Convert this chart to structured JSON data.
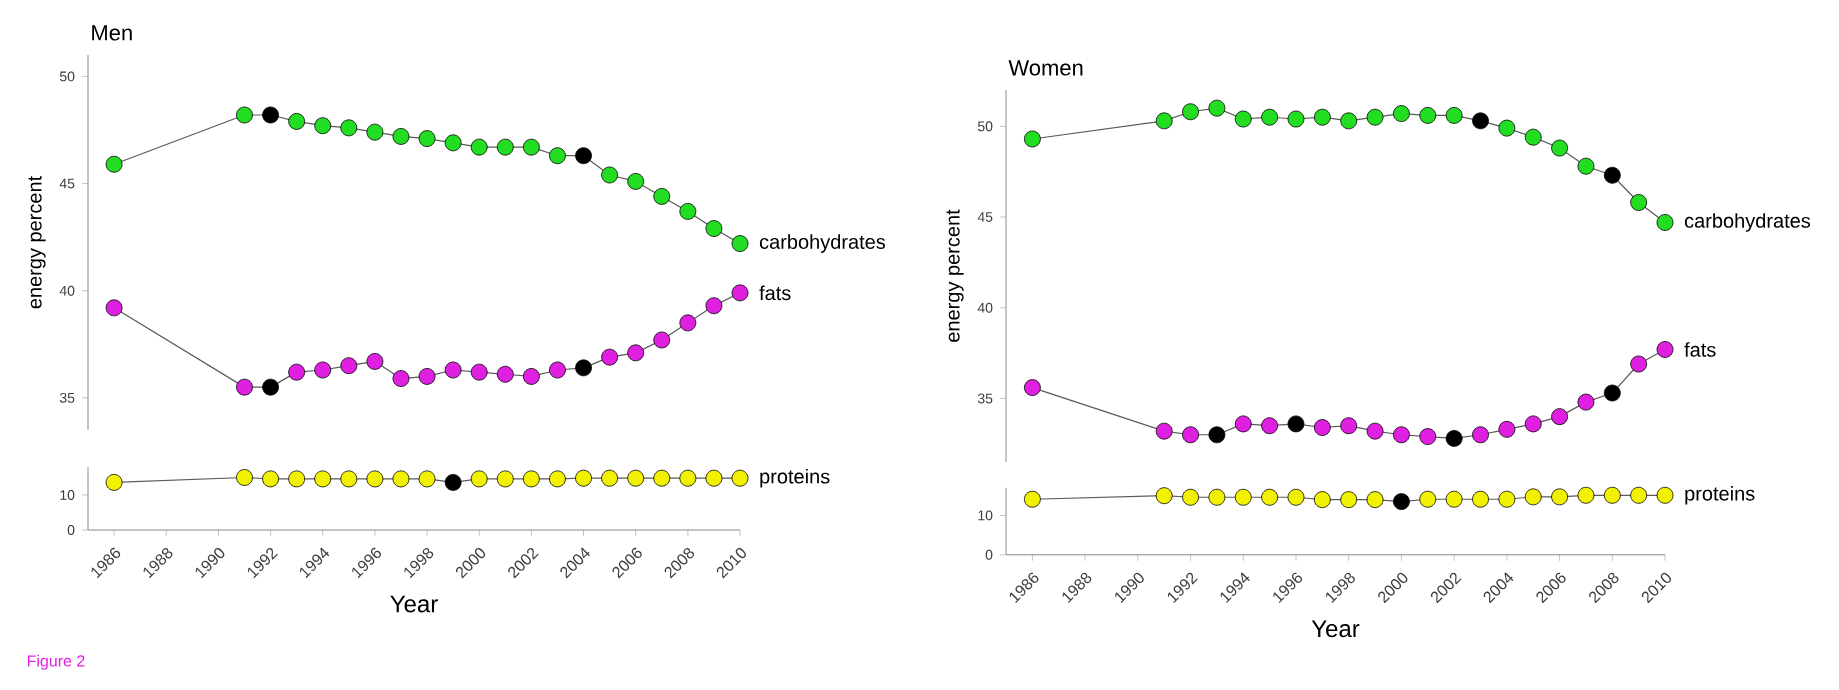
{
  "chart_data": [
    {
      "type": "line",
      "title": "Men",
      "ylabel": "energy percent",
      "tick_labels": "y",
      "marker": "circle",
      "line_style": "solid",
      "x": [
        1986,
        1991,
        1992,
        1993,
        1994,
        1995,
        1996,
        1997,
        1998,
        1999,
        2000,
        2001,
        2002,
        2003,
        2004,
        2005,
        2006,
        2007,
        2008,
        2009,
        2010
      ],
      "xlim": [
        1985,
        2010
      ],
      "ylim": [
        33.5,
        51
      ],
      "yticks": [
        35,
        40,
        45,
        50
      ],
      "series": [
        {
          "name": "carbohydrates",
          "color": "#22dd22",
          "colors": [
            null,
            null,
            "#000000",
            null,
            null,
            null,
            null,
            null,
            null,
            null,
            null,
            null,
            null,
            null,
            "#000000",
            null,
            null,
            null,
            null,
            null,
            null
          ],
          "values": [
            45.9,
            48.2,
            48.2,
            47.9,
            47.7,
            47.6,
            47.4,
            47.2,
            47.1,
            46.9,
            46.7,
            46.7,
            46.7,
            46.3,
            46.3,
            45.4,
            45.1,
            44.4,
            43.7,
            42.9,
            42.2
          ]
        },
        {
          "name": "fats",
          "color": "#e020e0",
          "colors": [
            null,
            null,
            "#000000",
            null,
            null,
            null,
            null,
            null,
            null,
            null,
            null,
            null,
            null,
            null,
            "#000000",
            null,
            null,
            null,
            null,
            null,
            null
          ],
          "values": [
            39.2,
            35.5,
            35.5,
            36.2,
            36.3,
            36.5,
            36.7,
            35.9,
            36.0,
            36.3,
            36.2,
            36.1,
            36.0,
            36.3,
            36.4,
            36.9,
            37.1,
            37.7,
            38.5,
            39.3,
            39.9
          ]
        }
      ]
    },
    {
      "type": "line",
      "xlabel": "Year",
      "marker": "circle",
      "line_style": "solid",
      "annotations": [
        "Figure 2"
      ],
      "x": [
        1986,
        1991,
        1992,
        1993,
        1994,
        1995,
        1996,
        1997,
        1998,
        1999,
        2000,
        2001,
        2002,
        2003,
        2004,
        2005,
        2006,
        2007,
        2008,
        2009,
        2010
      ],
      "xlim": [
        1985,
        2010
      ],
      "ylim": [
        0,
        18
      ],
      "yticks": [
        0,
        10
      ],
      "xticks": [
        1986,
        1988,
        1990,
        1992,
        1994,
        1996,
        1998,
        2000,
        2002,
        2004,
        2006,
        2008,
        2010
      ],
      "series": [
        {
          "name": "proteins",
          "color": "#f2f200",
          "colors": [
            null,
            null,
            null,
            null,
            null,
            null,
            null,
            null,
            null,
            "#000000",
            null,
            null,
            null,
            null,
            null,
            null,
            null,
            null,
            null,
            null,
            null
          ],
          "values": [
            13.6,
            15.0,
            14.6,
            14.6,
            14.6,
            14.6,
            14.6,
            14.6,
            14.6,
            13.6,
            14.6,
            14.6,
            14.6,
            14.6,
            14.8,
            14.8,
            14.8,
            14.8,
            14.8,
            14.8,
            14.8
          ]
        }
      ]
    },
    {
      "type": "line",
      "title": "Women",
      "ylabel": "energy percent",
      "tick_labels": "y",
      "marker": "circle",
      "line_style": "solid",
      "x": [
        1986,
        1991,
        1992,
        1993,
        1994,
        1995,
        1996,
        1997,
        1998,
        1999,
        2000,
        2001,
        2002,
        2003,
        2004,
        2005,
        2006,
        2007,
        2008,
        2009,
        2010
      ],
      "xlim": [
        1985,
        2010
      ],
      "ylim": [
        31.5,
        52
      ],
      "yticks": [
        35,
        40,
        45,
        50
      ],
      "series": [
        {
          "name": "carbohydrates",
          "color": "#22dd22",
          "colors": [
            null,
            null,
            null,
            null,
            null,
            null,
            null,
            null,
            null,
            null,
            null,
            null,
            null,
            "#000000",
            null,
            null,
            null,
            null,
            "#000000",
            null,
            null
          ],
          "values": [
            49.3,
            50.3,
            50.8,
            51.0,
            50.4,
            50.5,
            50.4,
            50.5,
            50.3,
            50.5,
            50.7,
            50.6,
            50.6,
            50.3,
            49.9,
            49.4,
            48.8,
            47.8,
            47.3,
            45.8,
            44.7
          ]
        },
        {
          "name": "fats",
          "color": "#e020e0",
          "colors": [
            null,
            null,
            null,
            "#000000",
            null,
            null,
            "#000000",
            null,
            null,
            null,
            null,
            null,
            "#000000",
            null,
            null,
            null,
            null,
            null,
            "#000000",
            null,
            null
          ],
          "values": [
            35.6,
            33.2,
            33.0,
            33.0,
            33.6,
            33.5,
            33.6,
            33.4,
            33.5,
            33.2,
            33.0,
            32.9,
            32.8,
            33.0,
            33.3,
            33.6,
            34.0,
            34.8,
            35.3,
            36.9,
            37.7
          ]
        }
      ]
    },
    {
      "type": "line",
      "xlabel": "Year",
      "marker": "circle",
      "line_style": "solid",
      "x": [
        1986,
        1991,
        1992,
        1993,
        1994,
        1995,
        1996,
        1997,
        1998,
        1999,
        2000,
        2001,
        2002,
        2003,
        2004,
        2005,
        2006,
        2007,
        2008,
        2009,
        2010
      ],
      "xlim": [
        1985,
        2010
      ],
      "ylim": [
        0,
        17
      ],
      "yticks": [
        0,
        10
      ],
      "xticks": [
        1986,
        1988,
        1990,
        1992,
        1994,
        1996,
        1998,
        2000,
        2002,
        2004,
        2006,
        2008,
        2010
      ],
      "series": [
        {
          "name": "proteins",
          "color": "#f2f200",
          "colors": [
            null,
            null,
            null,
            null,
            null,
            null,
            null,
            null,
            null,
            null,
            "#000000",
            null,
            null,
            null,
            null,
            null,
            null,
            null,
            null,
            null,
            null
          ],
          "values": [
            14.1,
            15.0,
            14.6,
            14.6,
            14.6,
            14.6,
            14.6,
            14.0,
            14.0,
            14.0,
            13.5,
            14.1,
            14.1,
            14.1,
            14.1,
            14.7,
            14.7,
            15.1,
            15.1,
            15.1,
            15.1
          ]
        }
      ]
    }
  ]
}
